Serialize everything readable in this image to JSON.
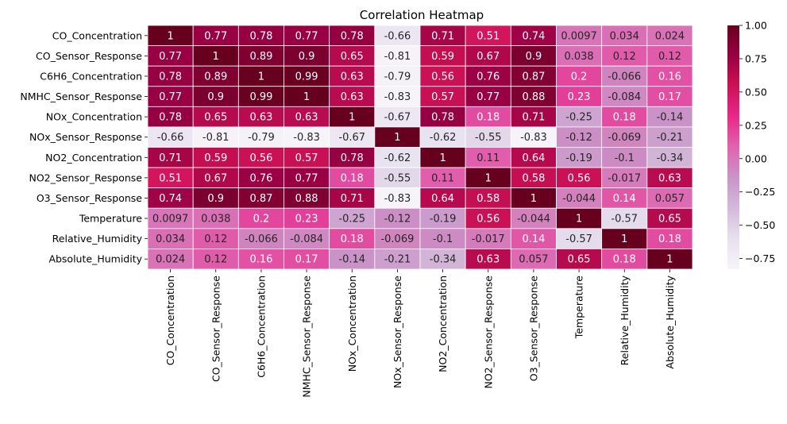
{
  "chart_data": {
    "type": "heatmap",
    "title": "Correlation Heatmap",
    "xlabel": "",
    "ylabel": "",
    "variables": [
      "CO_Concentration",
      "CO_Sensor_Response",
      "C6H6_Concentration",
      "NMHC_Sensor_Response",
      "NOx_Concentration",
      "NOx_Sensor_Response",
      "NO2_Concentration",
      "NO2_Sensor_Response",
      "O3_Sensor_Response",
      "Temperature",
      "Relative_Humidity",
      "Absolute_Humidity"
    ],
    "values": [
      [
        1,
        0.77,
        0.78,
        0.77,
        0.78,
        -0.66,
        0.71,
        0.51,
        0.74,
        0.0097,
        0.034,
        0.024
      ],
      [
        0.77,
        1,
        0.89,
        0.9,
        0.65,
        -0.81,
        0.59,
        0.67,
        0.9,
        0.038,
        0.12,
        0.12
      ],
      [
        0.78,
        0.89,
        1,
        0.99,
        0.63,
        -0.79,
        0.56,
        0.76,
        0.87,
        0.2,
        -0.066,
        0.16
      ],
      [
        0.77,
        0.9,
        0.99,
        1,
        0.63,
        -0.83,
        0.57,
        0.77,
        0.88,
        0.23,
        -0.084,
        0.17
      ],
      [
        0.78,
        0.65,
        0.63,
        0.63,
        1,
        -0.67,
        0.78,
        0.18,
        0.71,
        -0.25,
        0.18,
        -0.14
      ],
      [
        -0.66,
        -0.81,
        -0.79,
        -0.83,
        -0.67,
        1,
        -0.62,
        -0.55,
        -0.83,
        -0.12,
        -0.069,
        -0.21
      ],
      [
        0.71,
        0.59,
        0.56,
        0.57,
        0.78,
        -0.62,
        1,
        0.11,
        0.64,
        -0.19,
        -0.1,
        -0.34
      ],
      [
        0.51,
        0.67,
        0.76,
        0.77,
        0.18,
        -0.55,
        0.11,
        1,
        0.58,
        0.56,
        -0.017,
        0.63
      ],
      [
        0.74,
        0.9,
        0.87,
        0.88,
        0.71,
        -0.83,
        0.64,
        0.58,
        1,
        -0.044,
        0.14,
        0.057
      ],
      [
        0.0097,
        0.038,
        0.2,
        0.23,
        -0.25,
        -0.12,
        -0.19,
        0.56,
        -0.044,
        1,
        -0.57,
        0.65
      ],
      [
        0.034,
        0.12,
        -0.066,
        -0.084,
        0.18,
        -0.069,
        -0.1,
        -0.017,
        0.14,
        -0.57,
        1,
        0.18
      ],
      [
        0.024,
        0.12,
        0.16,
        0.17,
        -0.14,
        -0.21,
        -0.34,
        0.63,
        0.057,
        0.65,
        0.18,
        1
      ]
    ],
    "cell_labels": [
      [
        "1",
        "0.77",
        "0.78",
        "0.77",
        "0.78",
        "-0.66",
        "0.71",
        "0.51",
        "0.74",
        "0.0097",
        "0.034",
        "0.024"
      ],
      [
        "0.77",
        "1",
        "0.89",
        "0.9",
        "0.65",
        "-0.81",
        "0.59",
        "0.67",
        "0.9",
        "0.038",
        "0.12",
        "0.12"
      ],
      [
        "0.78",
        "0.89",
        "1",
        "0.99",
        "0.63",
        "-0.79",
        "0.56",
        "0.76",
        "0.87",
        "0.2",
        "-0.066",
        "0.16"
      ],
      [
        "0.77",
        "0.9",
        "0.99",
        "1",
        "0.63",
        "-0.83",
        "0.57",
        "0.77",
        "0.88",
        "0.23",
        "-0.084",
        "0.17"
      ],
      [
        "0.78",
        "0.65",
        "0.63",
        "0.63",
        "1",
        "-0.67",
        "0.78",
        "0.18",
        "0.71",
        "-0.25",
        "0.18",
        "-0.14"
      ],
      [
        "-0.66",
        "-0.81",
        "-0.79",
        "-0.83",
        "-0.67",
        "1",
        "-0.62",
        "-0.55",
        "-0.83",
        "-0.12",
        "-0.069",
        "-0.21"
      ],
      [
        "0.71",
        "0.59",
        "0.56",
        "0.57",
        "0.78",
        "-0.62",
        "1",
        "0.11",
        "0.64",
        "-0.19",
        "-0.1",
        "-0.34"
      ],
      [
        "0.51",
        "0.67",
        "0.76",
        "0.77",
        "0.18",
        "-0.55",
        "0.11",
        "1",
        "0.58",
        "0.56",
        "-0.017",
        "0.63"
      ],
      [
        "0.74",
        "0.9",
        "0.87",
        "0.88",
        "0.71",
        "-0.83",
        "0.64",
        "0.58",
        "1",
        "-0.044",
        "0.14",
        "0.057"
      ],
      [
        "0.0097",
        "0.038",
        "0.2",
        "0.23",
        "-0.25",
        "-0.12",
        "-0.19",
        "0.56",
        "-0.044",
        "1",
        "-0.57",
        "0.65"
      ],
      [
        "0.034",
        "0.12",
        "-0.066",
        "-0.084",
        "0.18",
        "-0.069",
        "-0.1",
        "-0.017",
        "0.14",
        "-0.57",
        "1",
        "0.18"
      ],
      [
        "0.024",
        "0.12",
        "0.16",
        "0.17",
        "-0.14",
        "-0.21",
        "-0.34",
        "0.63",
        "0.057",
        "0.65",
        "0.18",
        "1"
      ]
    ],
    "colormap": "PuRd",
    "colormap_stops": [
      "#f7f4f9",
      "#e7e1ef",
      "#d4b9da",
      "#c994c7",
      "#df65b0",
      "#e7298a",
      "#ce1256",
      "#980043",
      "#67001f"
    ],
    "value_range": [
      -0.83,
      1.0
    ],
    "colorbar_ticks": [
      1.0,
      0.75,
      0.5,
      0.25,
      0.0,
      -0.25,
      -0.5,
      -0.75
    ],
    "colorbar_tick_labels": [
      "1.00",
      "0.75",
      "0.50",
      "0.25",
      "0.00",
      "−0.25",
      "−0.50",
      "−0.75"
    ],
    "grid": false,
    "legend": "colorbar-right"
  }
}
